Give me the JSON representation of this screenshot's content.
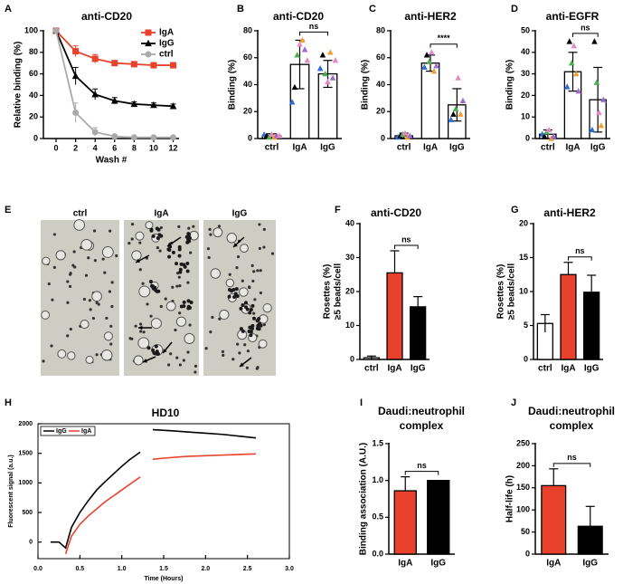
{
  "chart_data": [
    {
      "panel": "A",
      "type": "line",
      "title": "anti-CD20",
      "xlabel": "Wash #",
      "ylabel": "Relative binding (%)",
      "x": [
        0,
        2,
        4,
        6,
        8,
        10,
        12
      ],
      "xlim": [
        -1.3,
        12.6
      ],
      "xticks": [
        0,
        2,
        4,
        6,
        8,
        10,
        12
      ],
      "ylim": [
        0,
        100
      ],
      "yticks": [
        0,
        20,
        40,
        60,
        80,
        100
      ],
      "legend": "upper right",
      "series": [
        {
          "name": "IgA",
          "color": "#e8412c",
          "marker": "square",
          "values": [
            100,
            81,
            74,
            70,
            69,
            68,
            68
          ],
          "errors": [
            0,
            5,
            4,
            2,
            1,
            1,
            1
          ]
        },
        {
          "name": "IgG",
          "color": "#000000",
          "marker": "triangle",
          "values": [
            100,
            58,
            41,
            35,
            32,
            31,
            30
          ],
          "errors": [
            0,
            8,
            5,
            3,
            2,
            2,
            2
          ]
        },
        {
          "name": "ctrl",
          "color": "#aaaaaa",
          "marker": "circle",
          "values": [
            100,
            24,
            6,
            2,
            1,
            1,
            1
          ],
          "errors": [
            0,
            9,
            4,
            1,
            0,
            0,
            0
          ]
        }
      ]
    },
    {
      "panel": "B",
      "type": "bar",
      "title": "anti-CD20",
      "ylabel": "Binding (%)",
      "categories": [
        "ctrl",
        "IgA",
        "IgG"
      ],
      "values": [
        2,
        55,
        48
      ],
      "errors": [
        1.5,
        18,
        10
      ],
      "colors": [
        "#ffffff",
        "#ffffff",
        "#ffffff"
      ],
      "ylim": [
        0,
        80
      ],
      "yticks": [
        0,
        20,
        40,
        60,
        80
      ],
      "annotation": "ns",
      "points": [
        {
          "color": "#2b6cd6",
          "values": [
            3,
            27,
            52
          ]
        },
        {
          "color": "#000000",
          "values": [
            2,
            38,
            62
          ]
        },
        {
          "color": "#4caf50",
          "values": [
            1,
            62,
            48
          ]
        },
        {
          "color": "#e58ac8",
          "values": [
            3,
            70,
            42
          ]
        },
        {
          "color": "#f0a030",
          "values": [
            1,
            73,
            64
          ]
        },
        {
          "color": "#9b6bd0",
          "values": [
            2,
            66,
            45
          ]
        },
        {
          "color": "#e58ac8",
          "values": [
            2,
            58,
            58
          ]
        }
      ]
    },
    {
      "panel": "C",
      "type": "bar",
      "title": "anti-HER2",
      "ylabel": "Binding (%)",
      "categories": [
        "ctrl",
        "IgA",
        "IgG"
      ],
      "values": [
        2,
        56,
        25
      ],
      "errors": [
        2,
        6,
        12
      ],
      "colors": [
        "#ffffff",
        "#ffffff",
        "#ffffff"
      ],
      "ylim": [
        0,
        80
      ],
      "yticks": [
        0,
        20,
        40,
        60,
        80
      ],
      "annotation": "****",
      "points": [
        {
          "color": "#2b6cd6",
          "values": [
            1,
            53,
            14
          ]
        },
        {
          "color": "#000000",
          "values": [
            2,
            62,
            18
          ]
        },
        {
          "color": "#4caf50",
          "values": [
            3,
            57,
            22
          ]
        },
        {
          "color": "#e58ac8",
          "values": [
            4,
            64,
            45
          ]
        },
        {
          "color": "#f0a030",
          "values": [
            1,
            50,
            18
          ]
        },
        {
          "color": "#9b6bd0",
          "values": [
            2,
            54,
            28
          ]
        }
      ]
    },
    {
      "panel": "D",
      "type": "bar",
      "title": "anti-EGFR",
      "ylabel": "Binding (%)",
      "categories": [
        "ctrl",
        "IgA",
        "IgG"
      ],
      "values": [
        2,
        31,
        18
      ],
      "errors": [
        2,
        9,
        15
      ],
      "colors": [
        "#ffffff",
        "#ffffff",
        "#ffffff"
      ],
      "ylim": [
        0,
        50
      ],
      "yticks": [
        0,
        10,
        20,
        30,
        40,
        50
      ],
      "annotation": "ns",
      "points": [
        {
          "color": "#2b6cd6",
          "values": [
            2,
            24,
            4
          ]
        },
        {
          "color": "#000000",
          "values": [
            1,
            45,
            45
          ]
        },
        {
          "color": "#4caf50",
          "values": [
            3,
            35,
            26
          ]
        },
        {
          "color": "#e58ac8",
          "values": [
            4,
            43,
            12
          ]
        },
        {
          "color": "#f0a030",
          "values": [
            0,
            30,
            6
          ]
        },
        {
          "color": "#9b6bd0",
          "values": [
            1,
            22,
            18
          ]
        }
      ]
    },
    {
      "panel": "F",
      "type": "bar",
      "title": "anti-CD20",
      "ylabel_lines": [
        "Rosettes (%)",
        "≥5 beads/cell"
      ],
      "categories": [
        "ctrl",
        "IgA",
        "IgG"
      ],
      "values": [
        0.5,
        25.5,
        15.5
      ],
      "errors": [
        0.5,
        6.5,
        3
      ],
      "colors": [
        "#ffffff",
        "#e8412c",
        "#000000"
      ],
      "ylim": [
        0,
        40
      ],
      "yticks": [
        0,
        10,
        20,
        30,
        40
      ],
      "annotation": "ns"
    },
    {
      "panel": "G",
      "type": "bar",
      "title": "anti-HER2",
      "ylabel_lines": [
        "Rosettes (%)",
        "≥5 beads/cell"
      ],
      "categories": [
        "ctrl",
        "IgA",
        "IgG"
      ],
      "values": [
        5.3,
        12.5,
        9.9
      ],
      "errors": [
        1.3,
        1.8,
        2.5
      ],
      "colors": [
        "#ffffff",
        "#e8412c",
        "#000000"
      ],
      "ylim": [
        0,
        20
      ],
      "yticks": [
        0,
        5,
        10,
        15,
        20
      ],
      "annotation": "ns"
    },
    {
      "panel": "H",
      "type": "line",
      "title": "HD10",
      "xlabel": "Time (Hours)",
      "ylabel": "Fluorescent signal (a.u.)",
      "frame": true,
      "legend": "upper left",
      "x": [
        0.15,
        0.25,
        0.33,
        0.4,
        0.5,
        0.6,
        0.7,
        0.8,
        0.9,
        1.0,
        1.1,
        1.22,
        1.3,
        1.37,
        1.6,
        1.8,
        2.0,
        2.2,
        2.4,
        2.6
      ],
      "xlim": [
        0,
        3
      ],
      "xticks": [
        {
          "value": 0,
          "label": "0.0"
        },
        0.5,
        {
          "value": 1,
          "label": "1.0"
        },
        1.5,
        {
          "value": 2,
          "label": "2.0"
        },
        2.5,
        {
          "value": 3,
          "label": "3.0"
        }
      ],
      "ylim": [
        -280,
        2000
      ],
      "yticks": [
        0,
        500,
        1000,
        1500,
        2000
      ],
      "series": [
        {
          "name": "IgG",
          "color": "#000000",
          "values": [
            0,
            0,
            -100,
            250,
            500,
            700,
            880,
            1020,
            1150,
            1280,
            1400,
            1520,
            null,
            1900,
            1880,
            1860,
            1840,
            1820,
            1790,
            1760
          ]
        },
        {
          "name": "IgA",
          "color": "#e8412c",
          "values": [
            null,
            null,
            -200,
            100,
            300,
            440,
            560,
            680,
            780,
            880,
            980,
            1100,
            null,
            1400,
            1430,
            1450,
            1460,
            1470,
            1480,
            1490
          ]
        }
      ]
    },
    {
      "panel": "I",
      "type": "bar",
      "title_lines": [
        "Daudi:neutrophil",
        "complex"
      ],
      "ylabel": "Binding association (A.U.)",
      "categories": [
        "IgA",
        "IgG"
      ],
      "values": [
        0.86,
        1.0
      ],
      "errors": [
        0.19,
        0
      ],
      "colors": [
        "#e8412c",
        "#000000"
      ],
      "ylim": [
        0,
        1.5
      ],
      "yticks": [
        {
          "value": 0,
          "label": "0.0"
        },
        0.5,
        {
          "value": 1,
          "label": "1.0"
        },
        1.5
      ],
      "annotation": "ns"
    },
    {
      "panel": "J",
      "type": "bar",
      "title_lines": [
        "Daudi:neutrophil",
        "complex"
      ],
      "ylabel": "Half-life (h)",
      "categories": [
        "IgA",
        "IgG"
      ],
      "values": [
        155,
        63
      ],
      "errors": [
        38,
        45
      ],
      "colors": [
        "#e8412c",
        "#000000"
      ],
      "ylim": [
        0,
        250
      ],
      "yticks": [
        0,
        50,
        100,
        150,
        200,
        250
      ],
      "annotation": "ns"
    }
  ],
  "image_panel": {
    "panel": "E",
    "labels": [
      "ctrl",
      "IgA",
      "IgG"
    ]
  }
}
